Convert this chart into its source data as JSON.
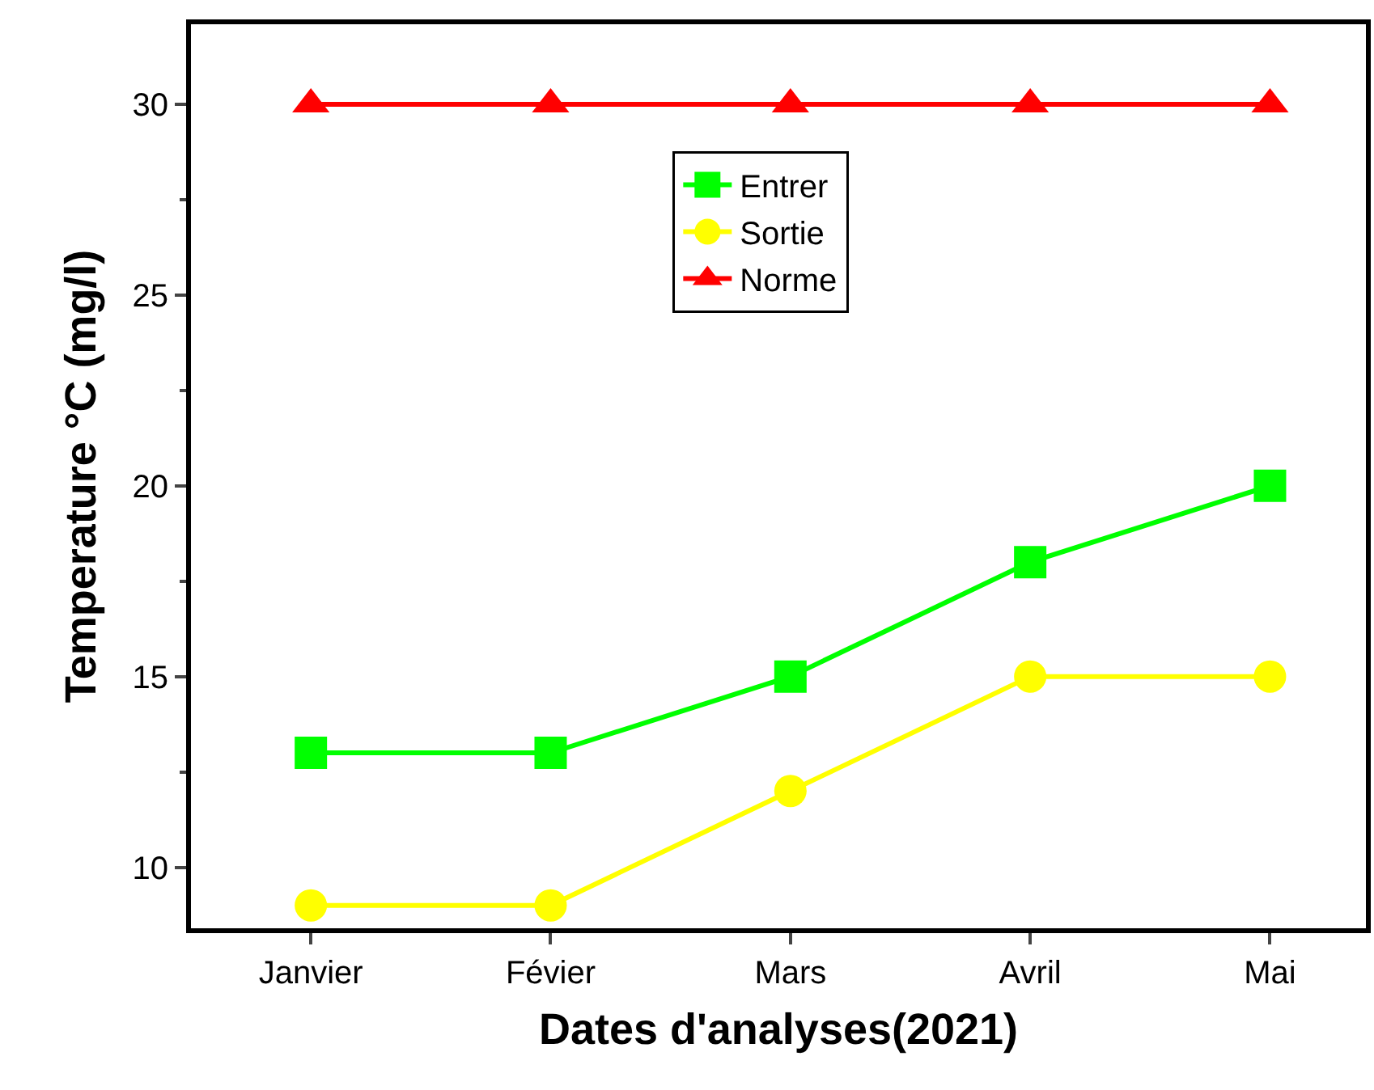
{
  "chart_data": {
    "type": "line",
    "xlabel": "Dates d'analyses(2021)",
    "ylabel": "Temperature °C (mg/l)",
    "categories": [
      "Janvier",
      "Févier",
      "Mars",
      "Avril",
      "Mai"
    ],
    "series": [
      {
        "name": "Entrer",
        "color": "#00ff00",
        "marker": "square",
        "values": [
          13,
          13,
          15,
          18,
          20
        ]
      },
      {
        "name": "Sortie",
        "color": "#ffff00",
        "marker": "circle",
        "values": [
          9,
          9,
          12,
          15,
          15
        ]
      },
      {
        "name": "Norme",
        "color": "#ff0000",
        "marker": "triangle",
        "values": [
          30,
          30,
          30,
          30,
          30
        ]
      }
    ],
    "ylim": [
      8.4,
      32.1
    ],
    "yticks": [
      10,
      15,
      20,
      25,
      30
    ],
    "legend": "top",
    "line_style": "solid"
  }
}
